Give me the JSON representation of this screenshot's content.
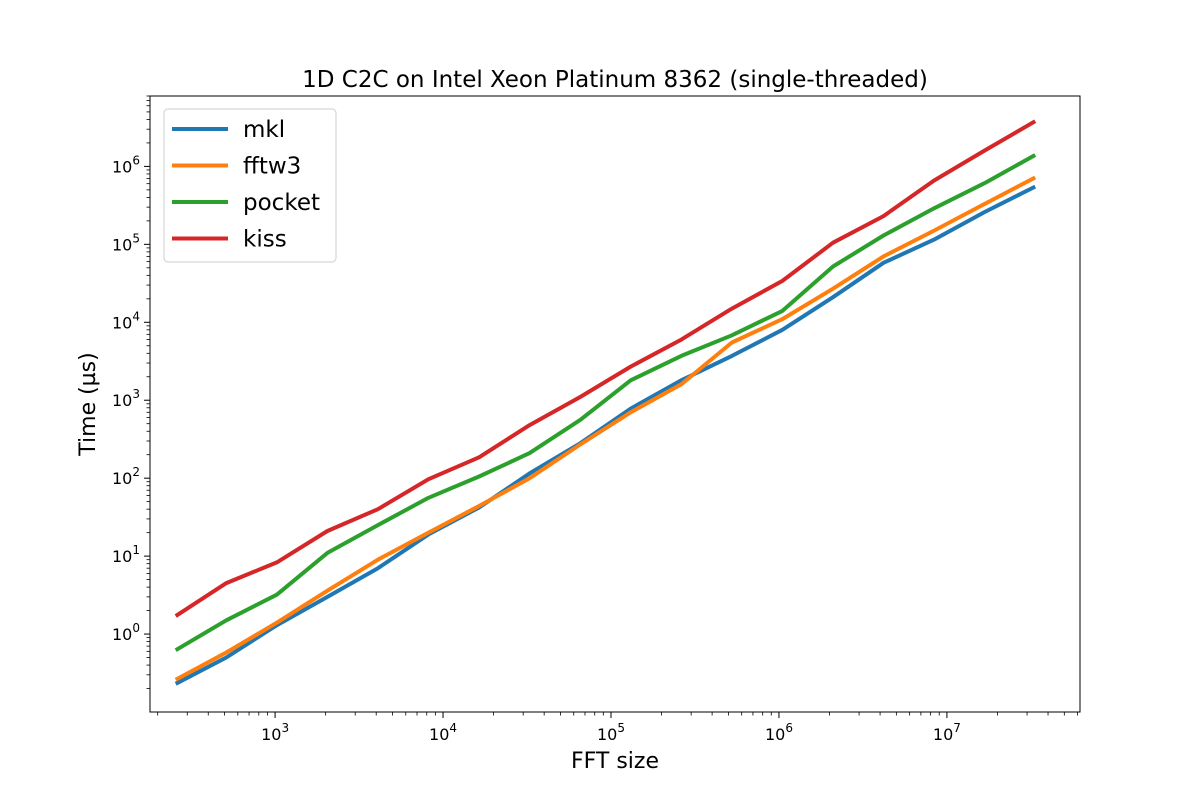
{
  "chart_data": {
    "type": "line",
    "title": "1D C2C on Intel Xeon Platinum 8362 (single-threaded)",
    "xlabel": "FFT size",
    "ylabel": "Time (µs)",
    "xscale": "log",
    "yscale": "log",
    "xlim": [
      180,
      62000000
    ],
    "ylim": [
      0.1,
      8000000
    ],
    "xticks": [
      {
        "value": 1000,
        "mant": "10",
        "exp": "3"
      },
      {
        "value": 10000,
        "mant": "10",
        "exp": "4"
      },
      {
        "value": 100000,
        "mant": "10",
        "exp": "5"
      },
      {
        "value": 1000000,
        "mant": "10",
        "exp": "6"
      },
      {
        "value": 10000000,
        "mant": "10",
        "exp": "7"
      }
    ],
    "yticks": [
      {
        "value": 1,
        "mant": "10",
        "exp": "0"
      },
      {
        "value": 10,
        "mant": "10",
        "exp": "1"
      },
      {
        "value": 100,
        "mant": "10",
        "exp": "2"
      },
      {
        "value": 1000,
        "mant": "10",
        "exp": "3"
      },
      {
        "value": 10000,
        "mant": "10",
        "exp": "4"
      },
      {
        "value": 100000,
        "mant": "10",
        "exp": "5"
      },
      {
        "value": 1000000,
        "mant": "10",
        "exp": "6"
      }
    ],
    "grid": false,
    "legend_position": "upper-left",
    "x": [
      256,
      512,
      1024,
      2048,
      4096,
      8192,
      16384,
      32768,
      65536,
      131072,
      262144,
      524288,
      1048576,
      2097152,
      4194304,
      8388608,
      16777216,
      33554432
    ],
    "series": [
      {
        "name": "mkl",
        "color": "#1f77b4",
        "values": [
          0.23,
          0.5,
          1.3,
          3.0,
          7.0,
          19,
          42,
          115,
          280,
          780,
          1800,
          3700,
          8000,
          21000,
          58000,
          115000,
          260000,
          550000
        ]
      },
      {
        "name": "fftw3",
        "color": "#ff7f0e",
        "values": [
          0.26,
          0.58,
          1.4,
          3.6,
          9.0,
          20,
          44,
          100,
          270,
          700,
          1600,
          5500,
          11000,
          27000,
          70000,
          150000,
          330000,
          720000
        ]
      },
      {
        "name": "pocket",
        "color": "#2ca02c",
        "values": [
          0.62,
          1.5,
          3.2,
          11,
          25,
          56,
          105,
          210,
          560,
          1800,
          3700,
          6800,
          14000,
          52000,
          130000,
          290000,
          610000,
          1400000
        ]
      },
      {
        "name": "kiss",
        "color": "#d62728",
        "values": [
          1.7,
          4.5,
          8.3,
          21,
          40,
          97,
          185,
          480,
          1100,
          2700,
          6000,
          15000,
          34000,
          105000,
          230000,
          660000,
          1600000,
          3800000
        ]
      }
    ]
  }
}
